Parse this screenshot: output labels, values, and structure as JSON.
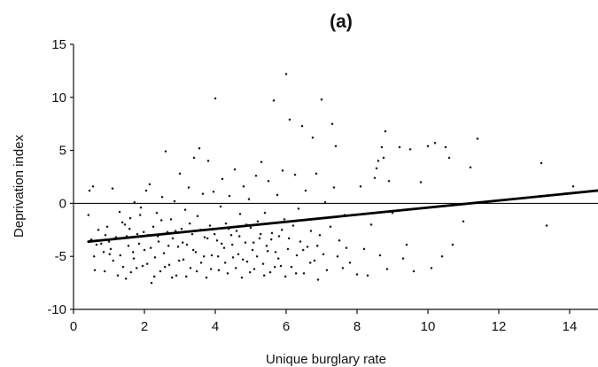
{
  "chart_data": {
    "type": "scatter",
    "title": "(a)",
    "xlabel": "Unique burglary rate",
    "ylabel": "Deprivation index",
    "xlim": [
      0,
      14.8
    ],
    "ylim": [
      -10,
      15
    ],
    "xticks": [
      0,
      2,
      4,
      6,
      8,
      10,
      12,
      14
    ],
    "yticks": [
      -10,
      -5,
      0,
      5,
      10,
      15
    ],
    "grid": false,
    "legend": "none",
    "trend_line": {
      "intercept": -3.75,
      "slope": 0.335
    },
    "points": [
      [
        0.42,
        -1.1
      ],
      [
        0.45,
        1.2
      ],
      [
        0.5,
        -3.4
      ],
      [
        0.55,
        1.6
      ],
      [
        0.58,
        -5.0
      ],
      [
        0.6,
        -6.3
      ],
      [
        0.7,
        -2.5
      ],
      [
        0.78,
        -3.8
      ],
      [
        0.85,
        -4.6
      ],
      [
        0.9,
        -3.0
      ],
      [
        0.95,
        -2.2
      ],
      [
        1.0,
        -3.6
      ],
      [
        1.05,
        -4.3
      ],
      [
        1.1,
        1.4
      ],
      [
        1.12,
        -5.4
      ],
      [
        1.2,
        -3.2
      ],
      [
        1.3,
        -0.8
      ],
      [
        1.32,
        -4.9
      ],
      [
        1.4,
        -6.0
      ],
      [
        1.45,
        -2.0
      ],
      [
        1.5,
        -3.1
      ],
      [
        1.55,
        -4.0
      ],
      [
        1.6,
        -1.4
      ],
      [
        1.62,
        -6.5
      ],
      [
        1.7,
        -5.2
      ],
      [
        1.72,
        0.1
      ],
      [
        1.8,
        -2.9
      ],
      [
        1.85,
        -3.8
      ],
      [
        1.9,
        -0.4
      ],
      [
        1.95,
        -5.9
      ],
      [
        2.0,
        -4.4
      ],
      [
        2.05,
        1.2
      ],
      [
        2.1,
        -3.0
      ],
      [
        2.15,
        1.8
      ],
      [
        2.2,
        -7.5
      ],
      [
        2.25,
        -2.2
      ],
      [
        2.3,
        -5.1
      ],
      [
        2.35,
        -0.9
      ],
      [
        2.4,
        -3.6
      ],
      [
        2.45,
        -6.4
      ],
      [
        2.5,
        0.6
      ],
      [
        2.55,
        -4.7
      ],
      [
        2.6,
        4.9
      ],
      [
        2.65,
        -2.7
      ],
      [
        2.7,
        -5.8
      ],
      [
        2.75,
        -1.5
      ],
      [
        2.8,
        -3.3
      ],
      [
        2.85,
        0.2
      ],
      [
        2.9,
        -6.8
      ],
      [
        2.95,
        -4.1
      ],
      [
        3.0,
        2.8
      ],
      [
        3.05,
        -2.4
      ],
      [
        3.1,
        -5.3
      ],
      [
        3.15,
        -0.6
      ],
      [
        3.2,
        -3.9
      ],
      [
        3.25,
        1.5
      ],
      [
        3.3,
        -6.1
      ],
      [
        3.35,
        -2.9
      ],
      [
        3.4,
        4.3
      ],
      [
        3.45,
        -4.6
      ],
      [
        3.5,
        -1.2
      ],
      [
        3.55,
        5.2
      ],
      [
        3.6,
        -5.6
      ],
      [
        3.65,
        0.9
      ],
      [
        3.7,
        -3.2
      ],
      [
        3.75,
        -7.0
      ],
      [
        3.8,
        4.0
      ],
      [
        3.85,
        -2.1
      ],
      [
        3.9,
        -4.9
      ],
      [
        3.95,
        1.1
      ],
      [
        4.0,
        9.9
      ],
      [
        4.05,
        -3.5
      ],
      [
        4.1,
        -6.3
      ],
      [
        4.15,
        -0.3
      ],
      [
        4.2,
        2.3
      ],
      [
        4.25,
        -4.2
      ],
      [
        4.3,
        -1.9
      ],
      [
        4.35,
        -6.6
      ],
      [
        4.4,
        0.7
      ],
      [
        4.45,
        -3.0
      ],
      [
        4.5,
        -5.1
      ],
      [
        4.55,
        3.2
      ],
      [
        4.6,
        -2.6
      ],
      [
        4.65,
        -4.8
      ],
      [
        4.7,
        -1.0
      ],
      [
        4.75,
        -7.0
      ],
      [
        4.8,
        1.6
      ],
      [
        4.85,
        -3.7
      ],
      [
        4.9,
        -5.5
      ],
      [
        4.95,
        0.4
      ],
      [
        5.0,
        -2.3
      ],
      [
        5.05,
        -4.4
      ],
      [
        5.1,
        -6.2
      ],
      [
        5.15,
        2.6
      ],
      [
        5.2,
        -1.7
      ],
      [
        5.25,
        -3.3
      ],
      [
        5.3,
        3.9
      ],
      [
        5.35,
        -5.7
      ],
      [
        5.4,
        -0.9
      ],
      [
        5.45,
        -4.0
      ],
      [
        5.5,
        2.1
      ],
      [
        5.55,
        -6.5
      ],
      [
        5.6,
        -2.8
      ],
      [
        5.65,
        9.7
      ],
      [
        5.7,
        -4.6
      ],
      [
        5.75,
        0.8
      ],
      [
        5.8,
        -3.1
      ],
      [
        5.85,
        -5.9
      ],
      [
        5.9,
        3.1
      ],
      [
        5.95,
        -1.5
      ],
      [
        6.0,
        12.2
      ],
      [
        6.05,
        -4.3
      ],
      [
        6.1,
        7.9
      ],
      [
        6.15,
        -6.0
      ],
      [
        6.2,
        -2.1
      ],
      [
        6.25,
        2.7
      ],
      [
        6.3,
        -4.9
      ],
      [
        6.35,
        -0.5
      ],
      [
        6.4,
        -3.6
      ],
      [
        6.45,
        7.3
      ],
      [
        6.5,
        -6.6
      ],
      [
        6.55,
        1.2
      ],
      [
        6.6,
        -4.1
      ],
      [
        6.7,
        -2.6
      ],
      [
        6.75,
        6.2
      ],
      [
        6.8,
        -5.4
      ],
      [
        6.85,
        2.8
      ],
      [
        6.9,
        -7.2
      ],
      [
        6.95,
        -3.0
      ],
      [
        7.0,
        9.8
      ],
      [
        7.05,
        -4.8
      ],
      [
        7.1,
        0.1
      ],
      [
        7.15,
        -6.3
      ],
      [
        7.25,
        -2.2
      ],
      [
        7.3,
        7.5
      ],
      [
        7.35,
        1.5
      ],
      [
        7.4,
        5.4
      ],
      [
        7.45,
        -5.0
      ],
      [
        7.5,
        -3.5
      ],
      [
        7.6,
        -6.1
      ],
      [
        7.65,
        -1.1
      ],
      [
        7.7,
        -4.2
      ],
      [
        7.8,
        -5.6
      ],
      [
        8.0,
        -6.7
      ],
      [
        8.1,
        1.6
      ],
      [
        8.2,
        -4.3
      ],
      [
        8.3,
        -6.8
      ],
      [
        8.4,
        -2.0
      ],
      [
        8.5,
        2.4
      ],
      [
        8.55,
        3.3
      ],
      [
        8.6,
        4.0
      ],
      [
        8.65,
        -4.9
      ],
      [
        8.7,
        5.3
      ],
      [
        8.75,
        4.3
      ],
      [
        8.8,
        6.8
      ],
      [
        8.85,
        -6.2
      ],
      [
        8.9,
        2.1
      ],
      [
        9.0,
        -0.9
      ],
      [
        9.2,
        5.3
      ],
      [
        9.3,
        -5.2
      ],
      [
        9.4,
        -3.9
      ],
      [
        9.5,
        5.1
      ],
      [
        9.6,
        -6.4
      ],
      [
        9.8,
        2.0
      ],
      [
        10.0,
        5.4
      ],
      [
        10.1,
        -6.1
      ],
      [
        10.2,
        5.7
      ],
      [
        10.4,
        -5.0
      ],
      [
        10.5,
        5.3
      ],
      [
        10.6,
        4.3
      ],
      [
        10.7,
        -3.9
      ],
      [
        11.0,
        -1.7
      ],
      [
        11.2,
        3.4
      ],
      [
        11.4,
        6.1
      ],
      [
        13.2,
        3.8
      ],
      [
        13.35,
        -2.1
      ],
      [
        14.1,
        1.6
      ],
      [
        0.65,
        -3.9
      ],
      [
        0.88,
        -6.4
      ],
      [
        1.02,
        -4.8
      ],
      [
        1.25,
        -6.8
      ],
      [
        1.38,
        -1.8
      ],
      [
        1.48,
        -7.1
      ],
      [
        1.58,
        -2.4
      ],
      [
        1.68,
        -4.6
      ],
      [
        1.78,
        -6.1
      ],
      [
        1.88,
        -1.1
      ],
      [
        1.98,
        -2.7
      ],
      [
        2.08,
        -5.7
      ],
      [
        2.18,
        -4.2
      ],
      [
        2.28,
        -6.9
      ],
      [
        2.38,
        -3.1
      ],
      [
        2.48,
        -1.6
      ],
      [
        2.58,
        -6.0
      ],
      [
        2.68,
        -4.0
      ],
      [
        2.78,
        -7.0
      ],
      [
        2.88,
        -2.6
      ],
      [
        2.98,
        -5.4
      ],
      [
        3.08,
        -3.7
      ],
      [
        3.18,
        -6.9
      ],
      [
        3.28,
        -1.9
      ],
      [
        3.38,
        -4.4
      ],
      [
        3.48,
        -6.4
      ],
      [
        3.58,
        -2.5
      ],
      [
        3.68,
        -5.0
      ],
      [
        3.78,
        -3.3
      ],
      [
        3.88,
        -6.2
      ],
      [
        3.98,
        -2.9
      ],
      [
        4.08,
        -5.0
      ],
      [
        4.18,
        -3.8
      ],
      [
        4.28,
        -5.6
      ],
      [
        4.38,
        -2.4
      ],
      [
        4.48,
        -3.9
      ],
      [
        4.58,
        -6.1
      ],
      [
        4.68,
        -3.1
      ],
      [
        4.78,
        -5.3
      ],
      [
        4.88,
        -2.0
      ],
      [
        4.98,
        -6.5
      ],
      [
        5.08,
        -3.7
      ],
      [
        5.18,
        -5.0
      ],
      [
        5.28,
        -2.9
      ],
      [
        5.38,
        -6.8
      ],
      [
        5.48,
        -4.5
      ],
      [
        5.58,
        -3.4
      ],
      [
        5.68,
        -6.0
      ],
      [
        5.78,
        -5.2
      ],
      [
        5.88,
        -2.5
      ],
      [
        5.98,
        -6.9
      ],
      [
        6.08,
        -3.3
      ],
      [
        6.28,
        -6.6
      ],
      [
        6.48,
        -4.4
      ],
      [
        6.68,
        -5.6
      ],
      [
        6.88,
        -4.0
      ]
    ]
  }
}
